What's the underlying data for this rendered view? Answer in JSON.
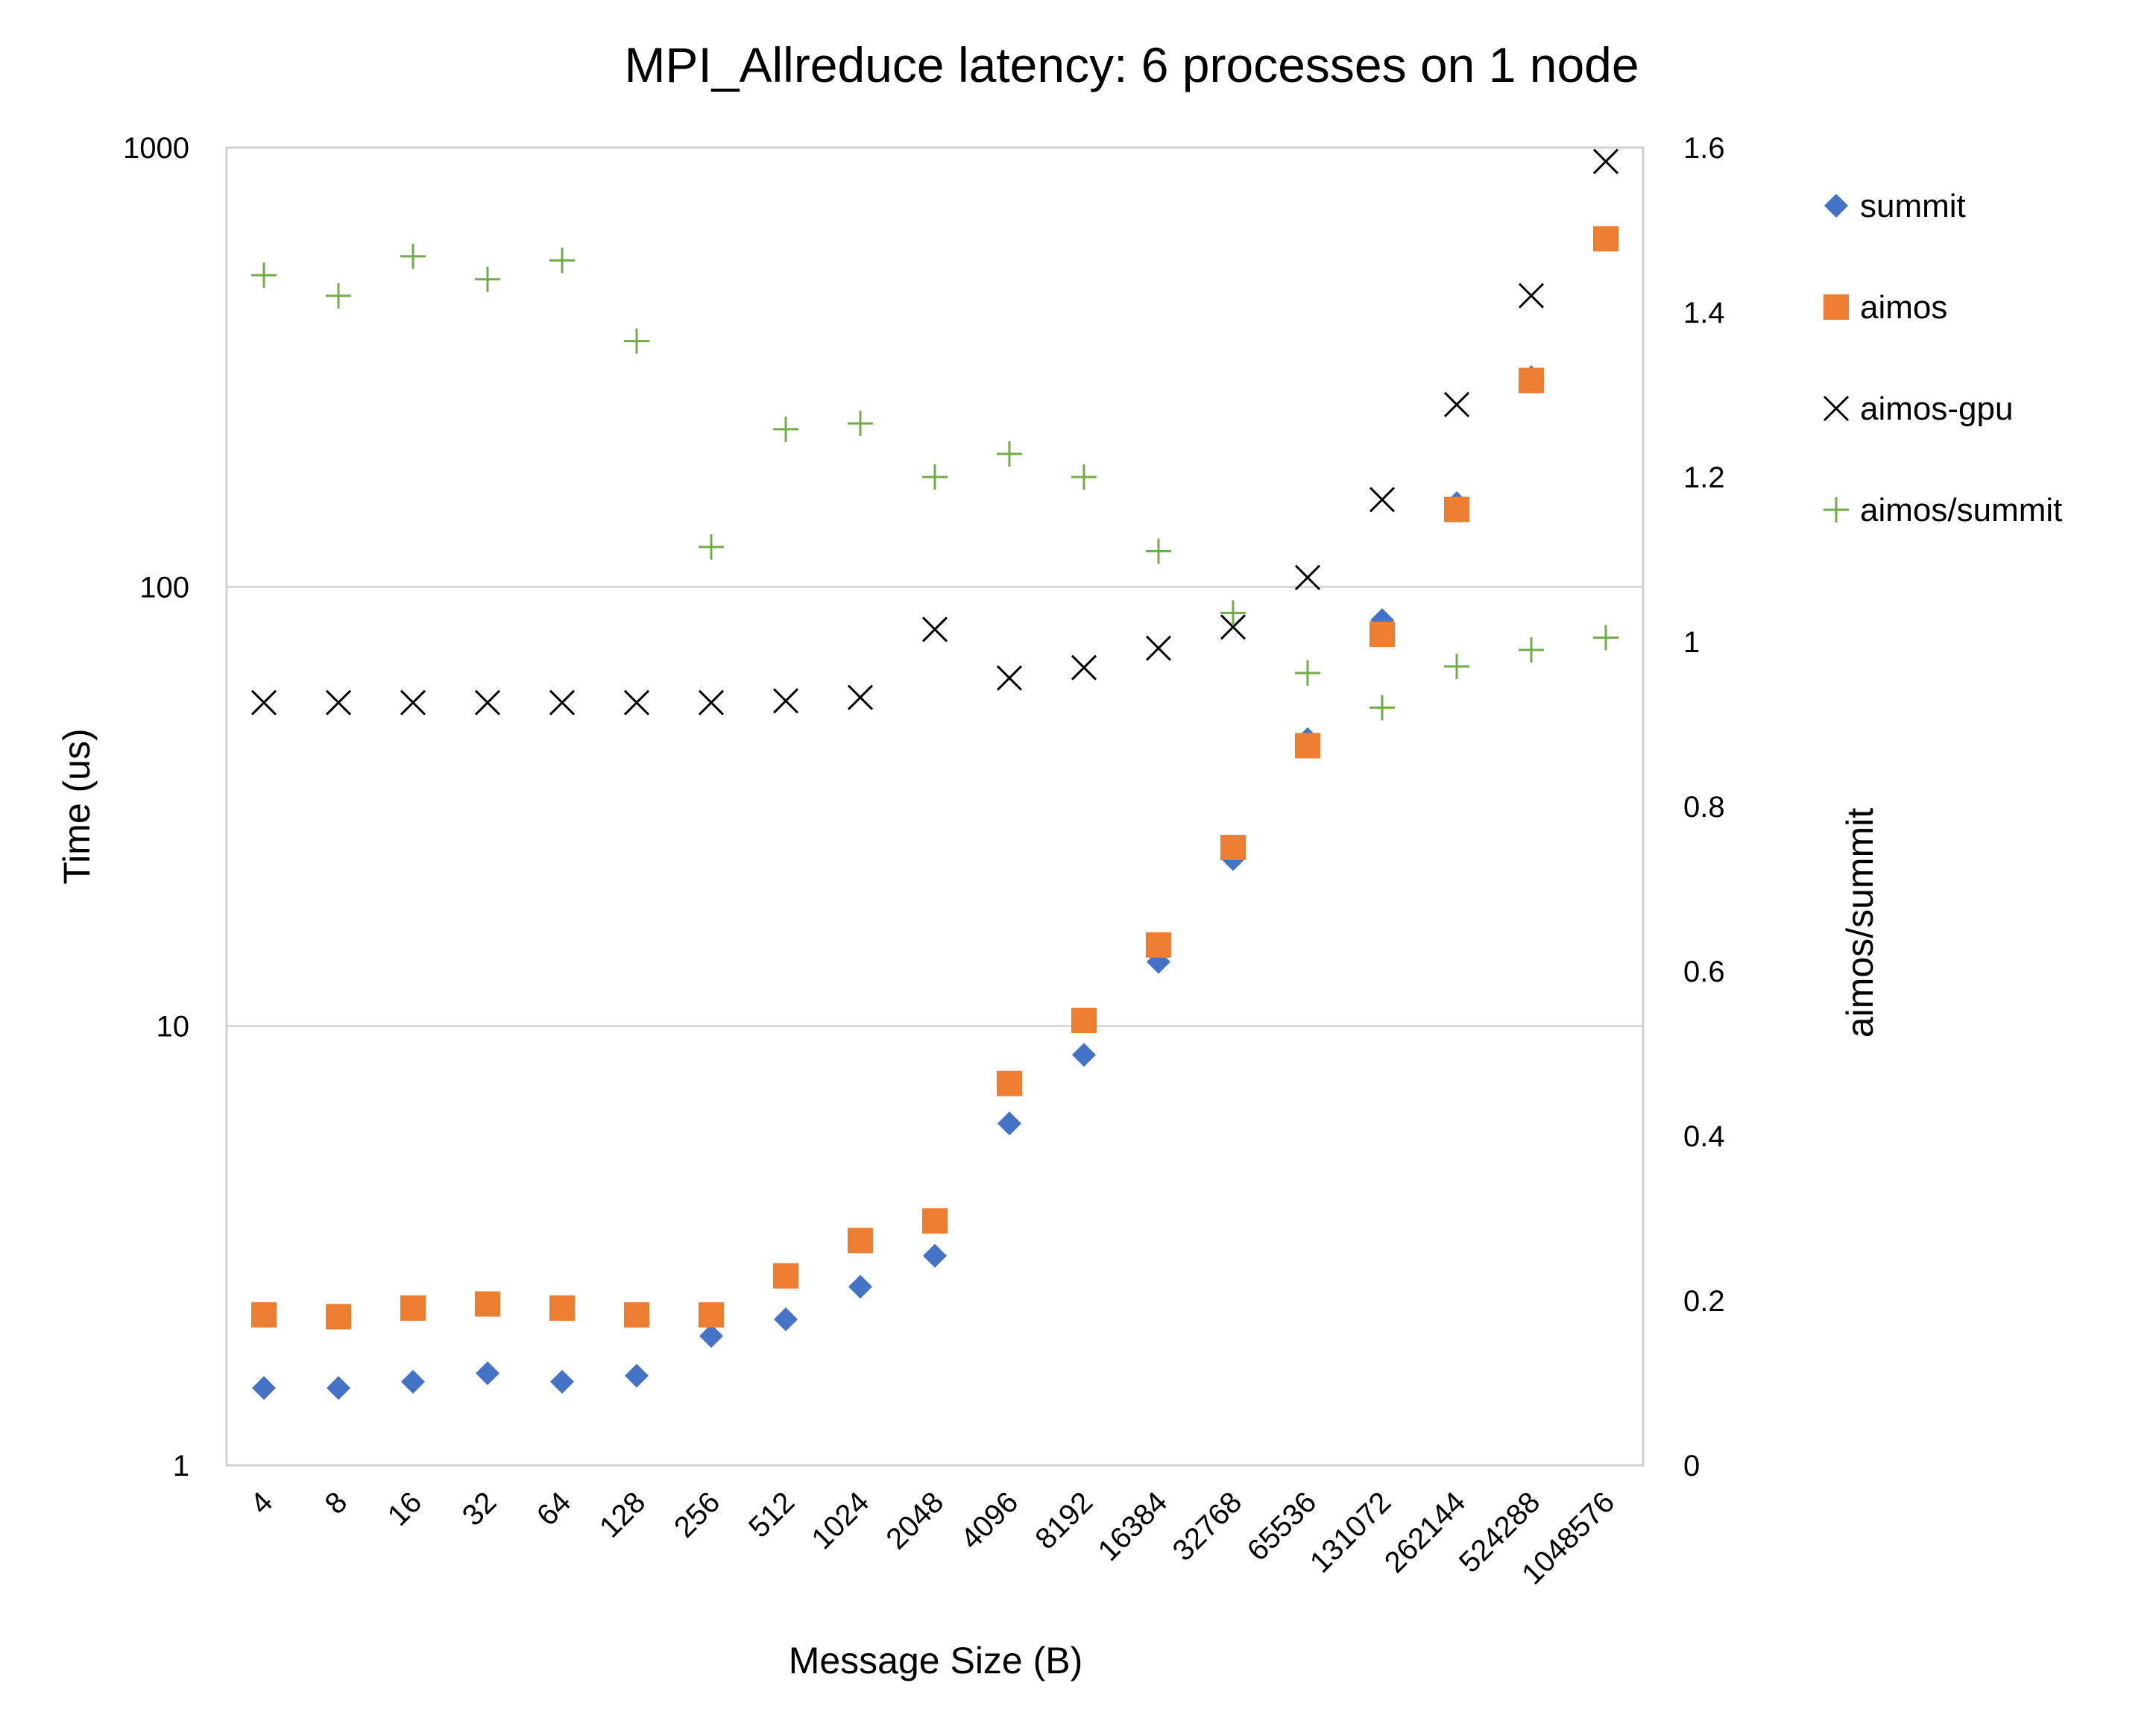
{
  "chart_data": {
    "type": "scatter",
    "title": "MPI_Allreduce latency: 6 processes on 1 node",
    "xlabel": "Message Size (B)",
    "ylabel": "Time (us)",
    "y2label": "aimos/summit",
    "y_scale": "log",
    "ylim": [
      1,
      1000
    ],
    "y2lim": [
      0,
      1.6
    ],
    "y_ticks": [
      "1",
      "10",
      "100",
      "1000"
    ],
    "y2_ticks": [
      "0",
      "0.2",
      "0.4",
      "0.6",
      "0.8",
      "1",
      "1.2",
      "1.4",
      "1.6"
    ],
    "gridlines": "horizontal at 10 and 100",
    "legend_position": "right",
    "categories": [
      "4",
      "8",
      "16",
      "32",
      "64",
      "128",
      "256",
      "512",
      "1024",
      "2048",
      "4096",
      "8192",
      "16384",
      "32768",
      "65536",
      "131072",
      "262144",
      "524288",
      "1048576"
    ],
    "series": [
      {
        "name": "summit",
        "axis": "left",
        "marker": "diamond",
        "color": "#4472C4",
        "values": [
          1.5,
          1.5,
          1.55,
          1.62,
          1.55,
          1.6,
          1.97,
          2.15,
          2.55,
          3.0,
          6.0,
          8.6,
          14.0,
          24.0,
          45.0,
          84.0,
          155.0,
          300.0,
          620.0
        ]
      },
      {
        "name": "aimos",
        "axis": "left",
        "marker": "square",
        "color": "#ED7D31",
        "values": [
          2.2,
          2.18,
          2.28,
          2.33,
          2.28,
          2.2,
          2.2,
          2.7,
          3.25,
          3.6,
          7.4,
          10.3,
          15.3,
          25.5,
          43.5,
          78.0,
          150.0,
          295.0,
          620.0
        ]
      },
      {
        "name": "aimos-gpu",
        "axis": "left",
        "marker": "x",
        "color": "#000000",
        "values": [
          54.5,
          54.5,
          54.5,
          54.5,
          54.5,
          54.5,
          54.5,
          55.0,
          56.0,
          80.0,
          62.0,
          65.5,
          72.5,
          81.0,
          105.0,
          158.0,
          260.0,
          460.0,
          930.0
        ]
      },
      {
        "name": "aimos/summit",
        "axis": "right",
        "marker": "plus",
        "color": "#70AD47",
        "values": [
          1.445,
          1.42,
          1.468,
          1.44,
          1.463,
          1.365,
          1.115,
          1.258,
          1.265,
          1.2,
          1.228,
          1.2,
          1.11,
          1.035,
          0.962,
          0.92,
          0.97,
          0.99,
          1.005
        ]
      }
    ]
  }
}
